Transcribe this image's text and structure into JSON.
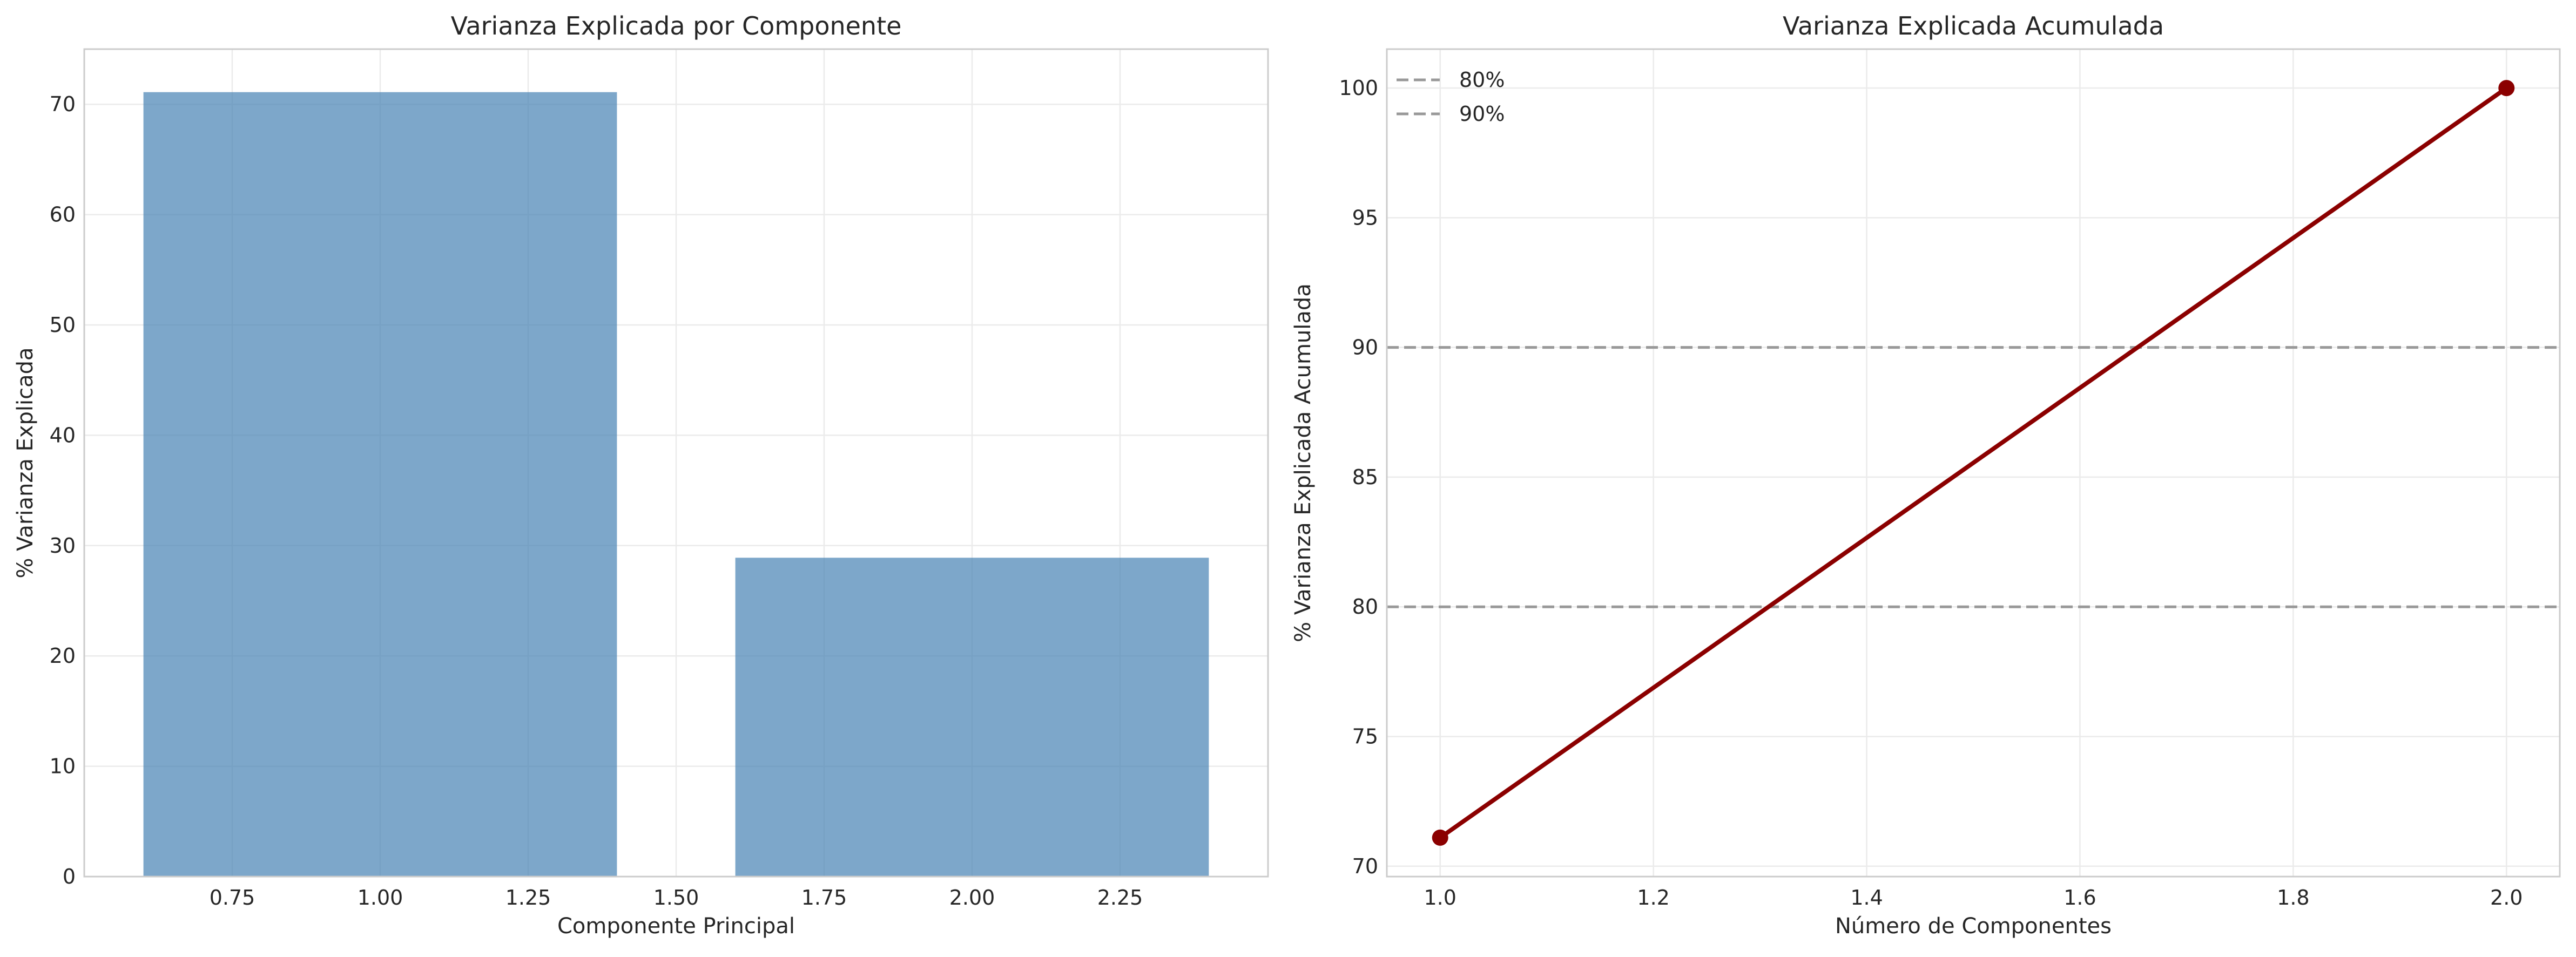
{
  "chart_data": [
    {
      "type": "bar",
      "title": "Varianza Explicada por Componente",
      "xlabel": "Componente Principal",
      "ylabel": "% Varianza Explicada",
      "categories": [
        1,
        2
      ],
      "values": [
        71.1,
        28.9
      ],
      "bar_width": 0.8,
      "xlim": [
        0.5,
        2.5
      ],
      "ylim": [
        0,
        75
      ],
      "xticks": [
        "0.75",
        "1.00",
        "1.25",
        "1.50",
        "1.75",
        "2.00",
        "2.25"
      ],
      "yticks": [
        "0",
        "10",
        "20",
        "30",
        "40",
        "50",
        "60",
        "70"
      ],
      "grid": true,
      "bar_color": "#4682b4",
      "bar_alpha": 0.7
    },
    {
      "type": "line",
      "title": "Varianza Explicada Acumulada",
      "xlabel": "Número de Componentes",
      "ylabel": "% Varianza Explicada Acumulada",
      "x": [
        1,
        2
      ],
      "y": [
        71.1,
        100.0
      ],
      "xlim": [
        0.95,
        2.05
      ],
      "ylim": [
        69.6,
        101.5
      ],
      "xticks": [
        "1.0",
        "1.2",
        "1.4",
        "1.6",
        "1.8",
        "2.0"
      ],
      "yticks": [
        "70",
        "75",
        "80",
        "85",
        "90",
        "95",
        "100"
      ],
      "grid": true,
      "line_color": "#8b0000",
      "reference_lines": [
        {
          "y": 80,
          "label": "80%",
          "style": "dashed",
          "color": "#999999"
        },
        {
          "y": 90,
          "label": "90%",
          "style": "dashed",
          "color": "#999999"
        }
      ],
      "legend": "top-left"
    }
  ]
}
